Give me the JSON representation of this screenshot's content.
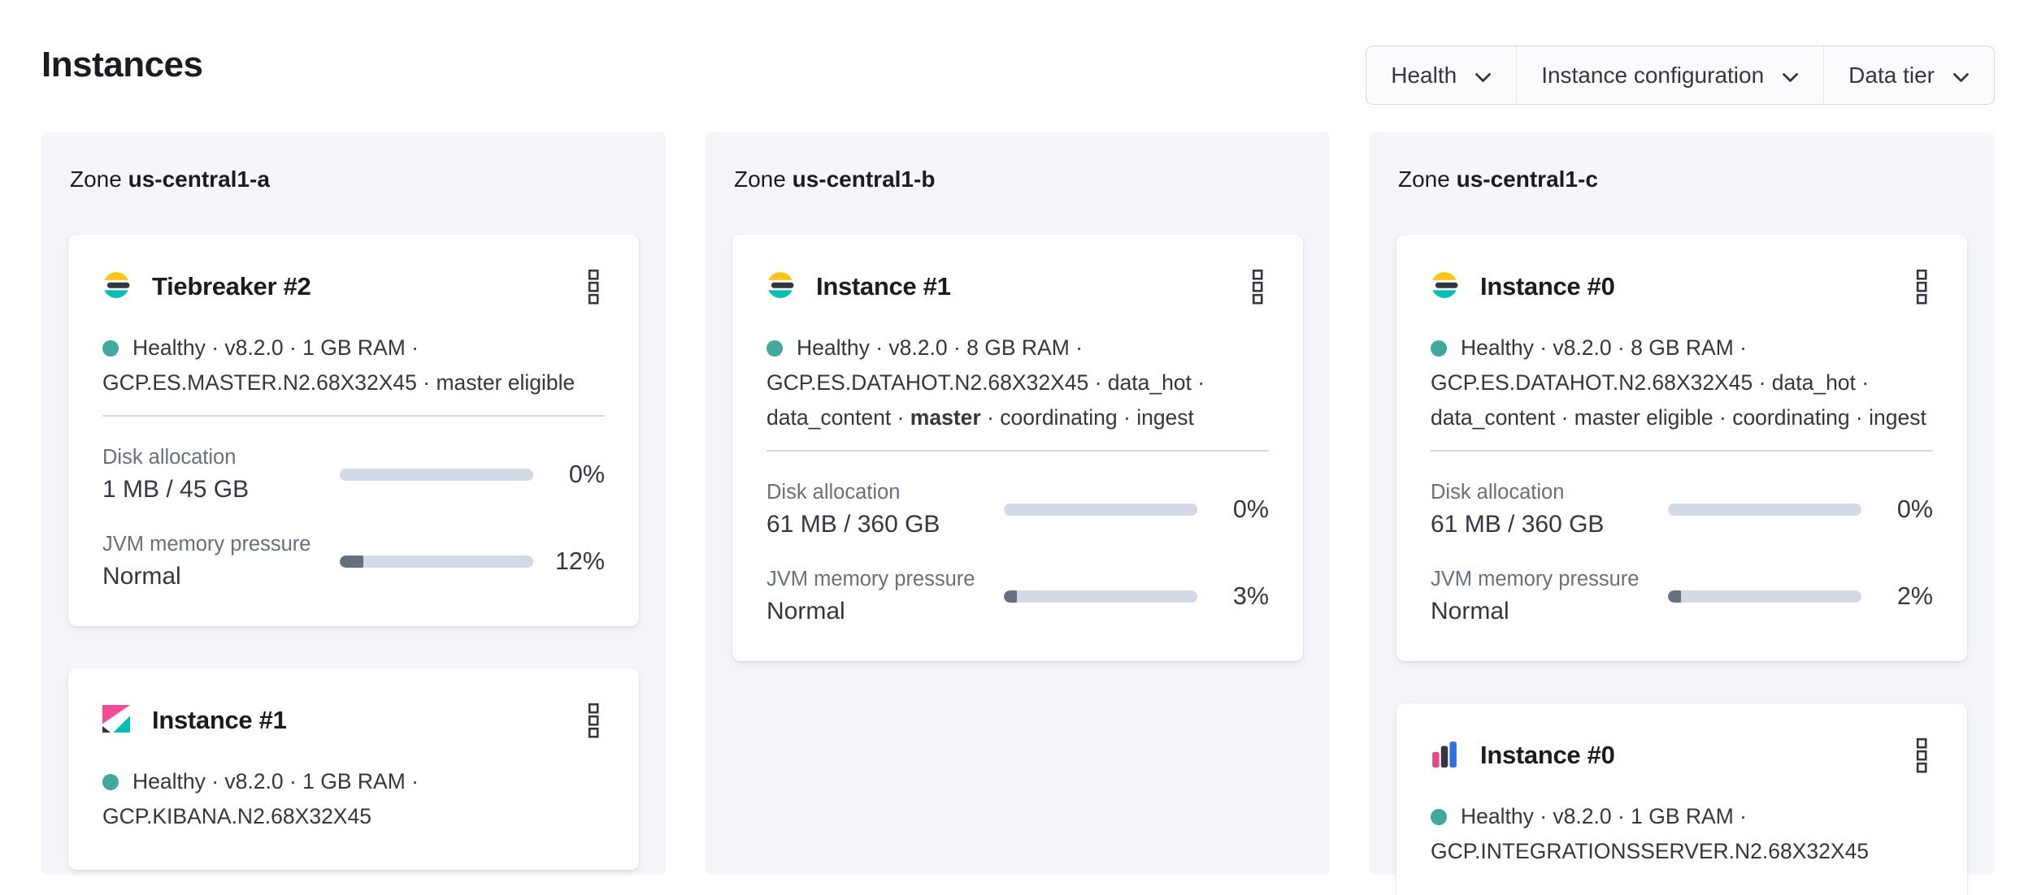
{
  "header": {
    "title": "Instances",
    "filters": [
      {
        "label": "Health",
        "icon": "chevron-down-icon"
      },
      {
        "label": "Instance configuration",
        "icon": "chevron-down-icon"
      },
      {
        "label": "Data tier",
        "icon": "chevron-down-icon"
      }
    ]
  },
  "labels": {
    "zone_prefix": "Zone",
    "disk": "Disk allocation",
    "jvm": "JVM memory pressure"
  },
  "zones": [
    {
      "name": "us-central1-a",
      "cards": [
        {
          "icon": "elasticsearch-logo",
          "title": "Tiebreaker #2",
          "status_line1": "Healthy · v8.2.0 · 1 GB RAM ·",
          "status_line2": "GCP.ES.MASTER.N2.68X32X45 · master eligible",
          "disk_value": "1 MB / 45 GB",
          "disk_percent_label": "0%",
          "disk_percent": 0,
          "jvm_value": "Normal",
          "jvm_percent_label": "12%",
          "jvm_percent": 12
        },
        {
          "icon": "kibana-logo",
          "title": "Instance #1",
          "status_line1": "Healthy · v8.2.0 · 1 GB RAM ·",
          "status_line2": "GCP.KIBANA.N2.68X32X45"
        }
      ]
    },
    {
      "name": "us-central1-b",
      "cards": [
        {
          "icon": "elasticsearch-logo",
          "title": "Instance #1",
          "status_line1": "Healthy · v8.2.0 · 8 GB RAM ·",
          "status_line2": "GCP.ES.DATAHOT.N2.68X32X45 · data_hot ·",
          "status_line3_prefix": "data_content · ",
          "status_line3_bold": "master",
          "status_line3_suffix": " · coordinating · ingest",
          "disk_value": "61 MB / 360 GB",
          "disk_percent_label": "0%",
          "disk_percent": 0,
          "jvm_value": "Normal",
          "jvm_percent_label": "3%",
          "jvm_percent": 3
        }
      ]
    },
    {
      "name": "us-central1-c",
      "cards": [
        {
          "icon": "elasticsearch-logo",
          "title": "Instance #0",
          "status_line1": "Healthy · v8.2.0 · 8 GB RAM ·",
          "status_line2": "GCP.ES.DATAHOT.N2.68X32X45 · data_hot ·",
          "status_line3": "data_content · master eligible · coordinating · ingest",
          "disk_value": "61 MB / 360 GB",
          "disk_percent_label": "0%",
          "disk_percent": 0,
          "jvm_value": "Normal",
          "jvm_percent_label": "2%",
          "jvm_percent": 2
        },
        {
          "icon": "integrations-server-logo",
          "title": "Instance #0",
          "status_line1": "Healthy · v8.2.0 · 1 GB RAM ·",
          "status_line2": "GCP.INTEGRATIONSSERVER.N2.68X32X45"
        }
      ]
    }
  ],
  "colors": {
    "health_dot": "#42A89C",
    "panel_bg": "#F5F6FA",
    "progress_track": "#D3DAE6",
    "progress_fill": "#69707D",
    "elasticsearch_logo": {
      "yellow": "#FEC514",
      "dark": "#343741",
      "teal": "#00BFB3"
    },
    "kibana_logo": {
      "pink": "#F04E98",
      "dark": "#343741",
      "teal": "#00BFB3"
    },
    "integrations_server_logo": {
      "pink": "#E8488B",
      "dark": "#343741",
      "blue": "#3170DF"
    }
  }
}
